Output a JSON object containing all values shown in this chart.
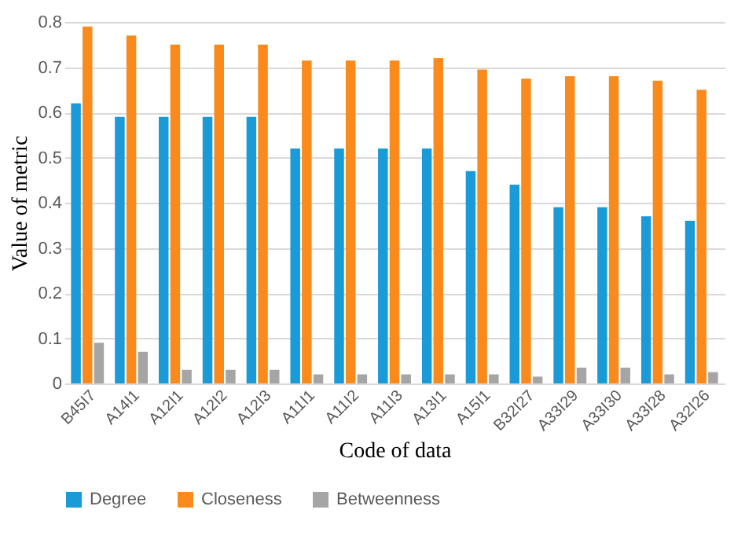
{
  "chart_data": {
    "type": "bar",
    "xlabel": "Code of data",
    "ylabel": "Value of metric",
    "categories": [
      "B45I7",
      "A14I1",
      "A12I1",
      "A12I2",
      "A12I3",
      "A11I1",
      "A11I2",
      "A11I3",
      "A13I1",
      "A15I1",
      "B32I27",
      "A33I29",
      "A33I30",
      "A33I28",
      "A32I26"
    ],
    "series": [
      {
        "name": "Degree",
        "color": "#1a9ad6",
        "values": [
          0.62,
          0.59,
          0.59,
          0.59,
          0.59,
          0.52,
          0.52,
          0.52,
          0.52,
          0.47,
          0.44,
          0.39,
          0.39,
          0.37,
          0.36
        ]
      },
      {
        "name": "Closeness",
        "color": "#f98a1b",
        "values": [
          0.79,
          0.77,
          0.75,
          0.75,
          0.75,
          0.715,
          0.715,
          0.715,
          0.72,
          0.695,
          0.675,
          0.68,
          0.68,
          0.67,
          0.65
        ]
      },
      {
        "name": "Betweenness",
        "color": "#a5a5a5",
        "values": [
          0.09,
          0.07,
          0.03,
          0.03,
          0.03,
          0.02,
          0.02,
          0.02,
          0.02,
          0.02,
          0.015,
          0.035,
          0.035,
          0.02,
          0.025
        ]
      }
    ],
    "ylim": [
      0,
      0.8
    ],
    "yticks": [
      0,
      0.1,
      0.2,
      0.3,
      0.4,
      0.5,
      0.6,
      0.7,
      0.8
    ],
    "grid": "y",
    "legend": "bottom"
  }
}
